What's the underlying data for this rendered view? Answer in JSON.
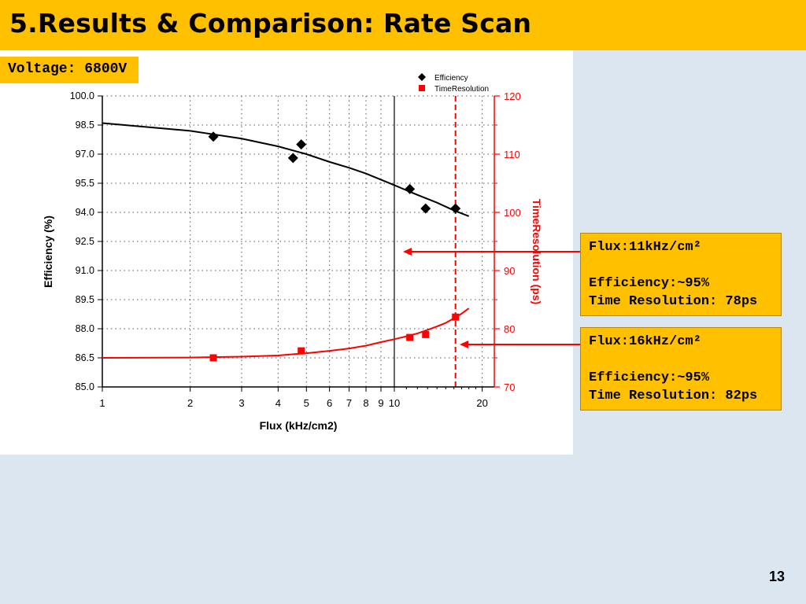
{
  "slide": {
    "title": "5.Results & Comparison: Rate Scan",
    "voltage_label": "Voltage: 6800V",
    "page_number": "13"
  },
  "annotations": [
    {
      "flux": "Flux:11kHz/cm²",
      "efficiency": "Efficiency:~95%",
      "time_resolution": "Time Resolution: 78ps"
    },
    {
      "flux": "Flux:16kHz/cm²",
      "efficiency": "Efficiency:~95%",
      "time_resolution": "Time Resolution: 82ps"
    }
  ],
  "chart_data": {
    "type": "scatter",
    "xlabel": "Flux (kHz/cm2)",
    "ylabel": "Efficiency (%)",
    "y2label": "TimeResolution (ps)",
    "xscale": "log",
    "xlim": [
      1,
      22
    ],
    "ylim": [
      85.0,
      100.0
    ],
    "y2lim": [
      70,
      120
    ],
    "xticks": [
      1,
      2,
      3,
      4,
      5,
      6,
      7,
      8,
      9,
      10,
      20
    ],
    "xtick_labels": [
      "1",
      "2",
      "3",
      "4",
      "5",
      "6",
      "7",
      "8",
      "9",
      "10",
      "20"
    ],
    "yticks": [
      85.0,
      86.5,
      88.0,
      89.5,
      91.0,
      92.5,
      94.0,
      95.5,
      97.0,
      98.5,
      100.0
    ],
    "ytick_labels": [
      "85.0",
      "86.5",
      "88.0",
      "89.5",
      "91.0",
      "92.5",
      "94.0",
      "95.5",
      "97.0",
      "98.5",
      "100.0"
    ],
    "y2ticks": [
      70,
      80,
      90,
      100,
      110,
      120
    ],
    "y2tick_labels": [
      "70",
      "80",
      "90",
      "100",
      "110",
      "120"
    ],
    "grid": true,
    "legend_position": "top-right",
    "series": [
      {
        "name": "Efficiency",
        "axis": "left",
        "marker": "diamond",
        "color": "#000000",
        "x": [
          2.4,
          4.5,
          4.8,
          11.3,
          12.8,
          16.2
        ],
        "y": [
          97.9,
          96.8,
          97.5,
          95.2,
          94.2,
          94.2
        ]
      },
      {
        "name": "TimeResolution",
        "axis": "right",
        "marker": "square",
        "color": "#ff0000",
        "x": [
          2.4,
          4.8,
          11.3,
          12.8,
          16.2
        ],
        "y": [
          75.0,
          76.2,
          78.5,
          79.0,
          82.0
        ]
      }
    ],
    "fits": [
      {
        "series": "Efficiency",
        "axis": "left",
        "color": "#000000",
        "x": [
          1,
          2,
          3,
          4,
          5,
          6,
          7,
          8,
          10,
          12,
          14,
          16,
          18
        ],
        "y": [
          98.6,
          98.2,
          97.8,
          97.4,
          97.0,
          96.6,
          96.3,
          96.0,
          95.4,
          94.9,
          94.5,
          94.1,
          93.8
        ]
      },
      {
        "series": "TimeResolution",
        "axis": "right",
        "color": "#ff0000",
        "x": [
          1,
          2,
          3,
          4,
          5,
          6,
          7,
          8,
          9,
          10,
          11,
          12,
          13,
          14,
          15,
          16,
          17,
          18
        ],
        "y": [
          75.0,
          75.05,
          75.2,
          75.4,
          75.8,
          76.2,
          76.6,
          77.1,
          77.7,
          78.2,
          78.7,
          79.2,
          79.8,
          80.4,
          81.0,
          81.8,
          82.6,
          83.5
        ]
      }
    ],
    "reference_lines": [
      {
        "x": 10,
        "style": "solid",
        "color": "#000000"
      },
      {
        "x": 16.2,
        "style": "dashed",
        "color": "#ff0000"
      }
    ]
  }
}
